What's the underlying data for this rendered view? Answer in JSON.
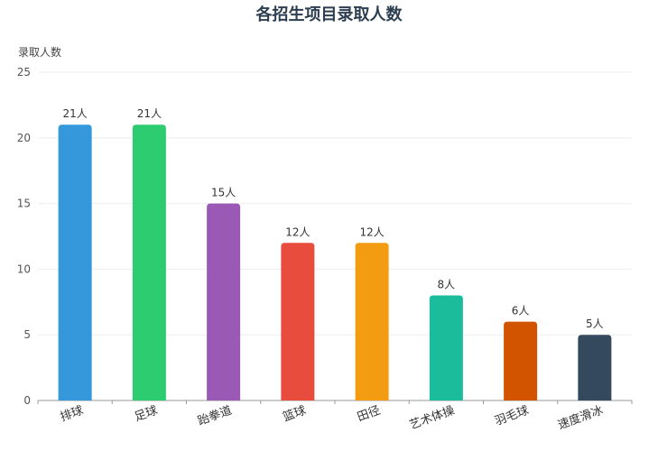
{
  "chart_data": {
    "type": "bar",
    "title": "各招生项目录取人数",
    "ylabel": "录取人数",
    "xlabel": "",
    "categories": [
      "排球",
      "足球",
      "跆拳道",
      "篮球",
      "田径",
      "艺术体操",
      "羽毛球",
      "速度滑冰"
    ],
    "values": [
      21,
      21,
      15,
      12,
      12,
      8,
      6,
      5
    ],
    "data_labels": [
      "21人",
      "21人",
      "15人",
      "12人",
      "12人",
      "8人",
      "6人",
      "5人"
    ],
    "colors": [
      "#3498db",
      "#2ecc71",
      "#9b59b6",
      "#e74c3c",
      "#f39c12",
      "#1abc9c",
      "#d35400",
      "#34495e"
    ],
    "ylim": [
      0,
      25
    ],
    "yticks": [
      0,
      5,
      10,
      15,
      20,
      25
    ],
    "grid": true,
    "legend": "none"
  }
}
